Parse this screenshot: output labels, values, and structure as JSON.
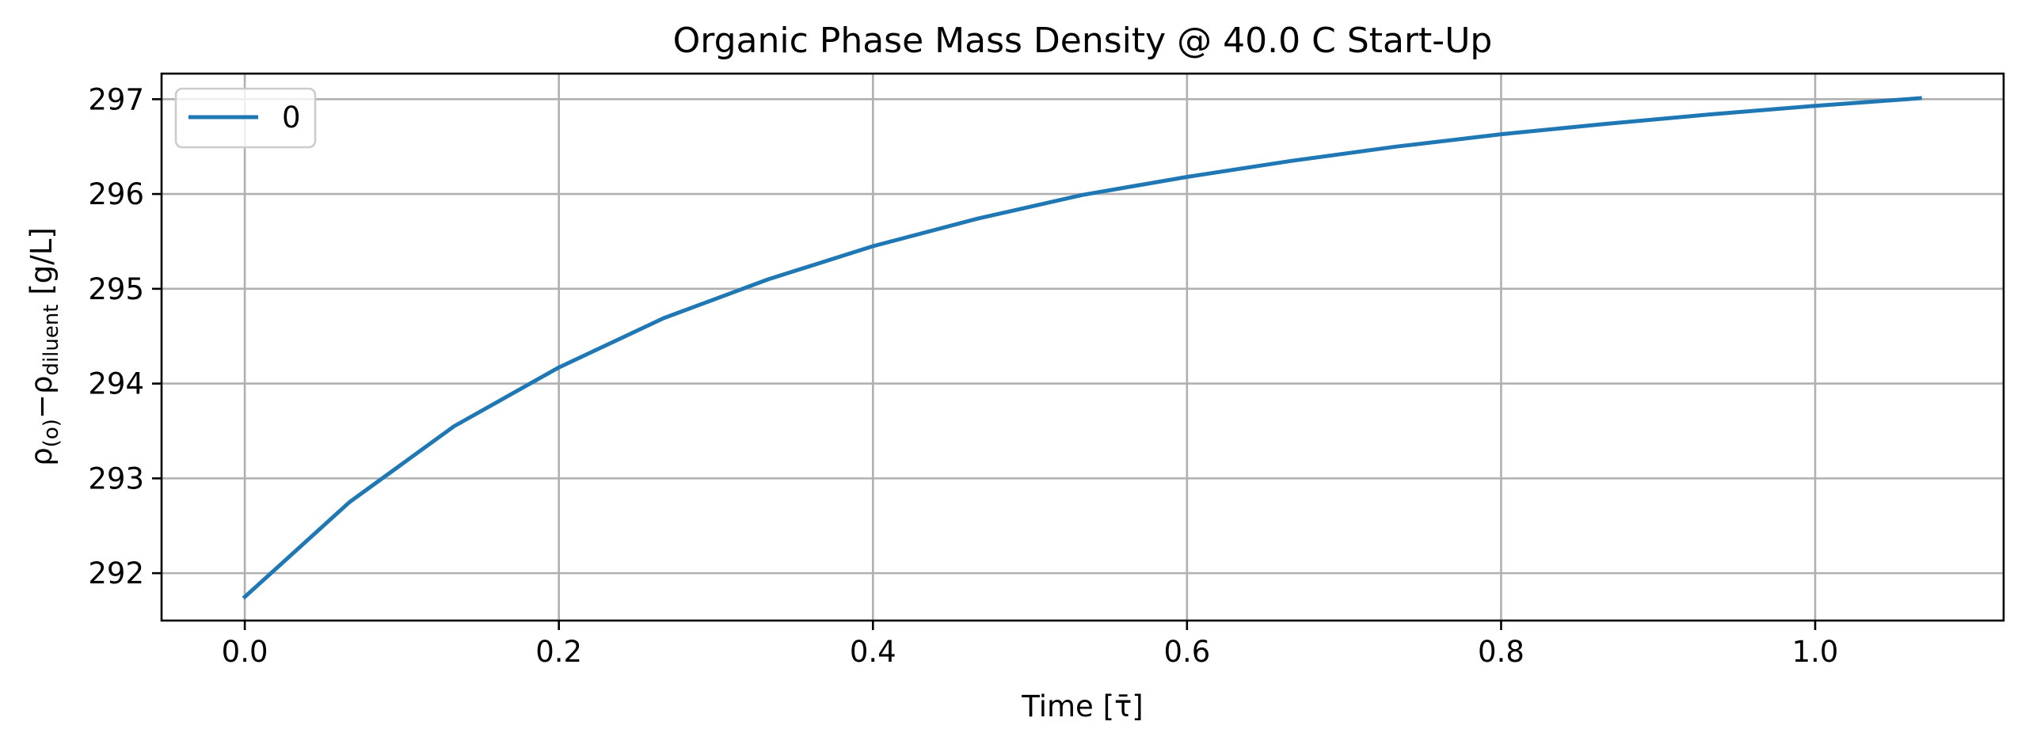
{
  "chart_data": {
    "type": "line",
    "title": "Organic Phase Mass Density @ 40.0 C Start-Up",
    "xlabel": "Time [τ̄]",
    "ylabel": {
      "rho": "ρ",
      "sub1": "(o)",
      "minus": "−",
      "sub2": "diluent",
      "unit": " [g/L]"
    },
    "xlim": [
      -0.053,
      1.12
    ],
    "ylim": [
      291.5,
      297.27
    ],
    "xticks": [
      "0.0",
      "0.2",
      "0.4",
      "0.6",
      "0.8",
      "1.0"
    ],
    "xtick_values": [
      0.0,
      0.2,
      0.4,
      0.6,
      0.8,
      1.0
    ],
    "yticks": [
      "292",
      "293",
      "294",
      "295",
      "296",
      "297"
    ],
    "ytick_values": [
      292,
      293,
      294,
      295,
      296,
      297
    ],
    "grid": true,
    "legend_position": "upper-left",
    "series": [
      {
        "name": "0",
        "color": "#1f77b4",
        "x": [
          0.0,
          0.0667,
          0.1333,
          0.2,
          0.2667,
          0.3333,
          0.4,
          0.4667,
          0.5333,
          0.6,
          0.6667,
          0.7333,
          0.8,
          0.8667,
          0.9333,
          1.0,
          1.0667
        ],
        "y": [
          291.75,
          292.75,
          293.55,
          294.17,
          294.69,
          295.1,
          295.45,
          295.74,
          295.99,
          296.18,
          296.35,
          296.5,
          296.63,
          296.74,
          296.84,
          296.93,
          297.01
        ]
      }
    ]
  }
}
